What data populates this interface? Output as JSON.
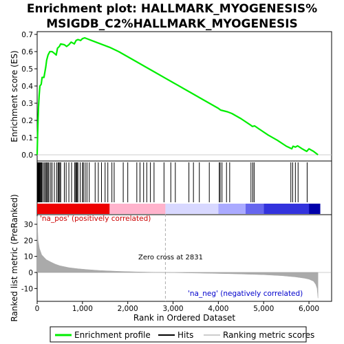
{
  "chart_data": {
    "type": "line",
    "title_line1": "Enrichment plot: HALLMARK_MYOGENESIS%",
    "title_line2": "MSIGDB_C2%HALLMARK_MYOGENESIS",
    "xlabel": "Rank in Ordered Dataset",
    "ylabel_top": "Enrichment score (ES)",
    "ylabel_bottom": "Ranked list metric (PreRanked)",
    "xlim": [
      0,
      6500
    ],
    "ylim_top": [
      0,
      0.7
    ],
    "ylim_bottom": [
      -18,
      36
    ],
    "xticks": [
      0,
      1000,
      2000,
      3000,
      4000,
      5000,
      6000
    ],
    "xtick_labels": [
      "0",
      "1,000",
      "2,000",
      "3,000",
      "4,000",
      "5,000",
      "6,000"
    ],
    "yticks_top": [
      0.0,
      0.1,
      0.2,
      0.3,
      0.4,
      0.5,
      0.6,
      0.7
    ],
    "ytick_labels_top": [
      "0.0",
      "0.1",
      "0.2",
      "0.3",
      "0.4",
      "0.5",
      "0.6",
      "0.7"
    ],
    "yticks_bottom": [
      -10,
      0,
      10,
      20,
      30
    ],
    "ytick_labels_bottom": [
      "-10",
      "0",
      "10",
      "20",
      "30"
    ],
    "zero_cross_rank": 2831,
    "annotations": {
      "pos": "'na_pos' (positively correlated)",
      "neg": "'na_neg' (negatively correlated)",
      "zero": "Zero cross at 2831"
    },
    "legend": {
      "enrichment": "Enrichment profile",
      "hits": "Hits",
      "metric": "Ranking metric scores"
    },
    "colors": {
      "profile": "#00ee00",
      "hits": "#000000",
      "metric": "#aaaaaa",
      "zero_line": "#aaaaaa"
    },
    "es_profile": [
      [
        0,
        0.0
      ],
      [
        10,
        0.12
      ],
      [
        20,
        0.2
      ],
      [
        30,
        0.28
      ],
      [
        45,
        0.35
      ],
      [
        60,
        0.4
      ],
      [
        90,
        0.41
      ],
      [
        110,
        0.45
      ],
      [
        150,
        0.45
      ],
      [
        170,
        0.48
      ],
      [
        190,
        0.51
      ],
      [
        210,
        0.55
      ],
      [
        240,
        0.58
      ],
      [
        280,
        0.6
      ],
      [
        330,
        0.6
      ],
      [
        380,
        0.59
      ],
      [
        420,
        0.58
      ],
      [
        450,
        0.62
      ],
      [
        490,
        0.63
      ],
      [
        520,
        0.645
      ],
      [
        600,
        0.64
      ],
      [
        650,
        0.63
      ],
      [
        700,
        0.64
      ],
      [
        750,
        0.655
      ],
      [
        820,
        0.645
      ],
      [
        860,
        0.665
      ],
      [
        900,
        0.67
      ],
      [
        960,
        0.665
      ],
      [
        1000,
        0.675
      ],
      [
        1050,
        0.68
      ],
      [
        1200,
        0.665
      ],
      [
        1400,
        0.645
      ],
      [
        1600,
        0.625
      ],
      [
        1800,
        0.6
      ],
      [
        2000,
        0.57
      ],
      [
        2200,
        0.54
      ],
      [
        2400,
        0.51
      ],
      [
        2600,
        0.48
      ],
      [
        2831,
        0.445
      ],
      [
        3000,
        0.42
      ],
      [
        3200,
        0.39
      ],
      [
        3400,
        0.36
      ],
      [
        3600,
        0.33
      ],
      [
        3800,
        0.3
      ],
      [
        4000,
        0.27
      ],
      [
        4050,
        0.26
      ],
      [
        4200,
        0.25
      ],
      [
        4300,
        0.24
      ],
      [
        4500,
        0.21
      ],
      [
        4700,
        0.175
      ],
      [
        4750,
        0.165
      ],
      [
        4800,
        0.168
      ],
      [
        4900,
        0.15
      ],
      [
        5100,
        0.115
      ],
      [
        5300,
        0.085
      ],
      [
        5500,
        0.05
      ],
      [
        5620,
        0.035
      ],
      [
        5650,
        0.05
      ],
      [
        5700,
        0.045
      ],
      [
        5750,
        0.052
      ],
      [
        5850,
        0.035
      ],
      [
        5950,
        0.02
      ],
      [
        6000,
        0.035
      ],
      [
        6100,
        0.02
      ],
      [
        6200,
        0.0
      ]
    ],
    "hits": [
      5,
      15,
      25,
      35,
      45,
      55,
      70,
      85,
      100,
      120,
      150,
      175,
      200,
      215,
      240,
      260,
      300,
      330,
      380,
      430,
      460,
      480,
      500,
      520,
      600,
      640,
      700,
      760,
      830,
      850,
      870,
      880,
      900,
      950,
      1000,
      1020,
      1060,
      1100,
      1150,
      1280,
      1350,
      1420,
      1500,
      1560,
      1650,
      1700,
      1900,
      2000,
      2200,
      2270,
      2350,
      2420,
      2500,
      2580,
      2800,
      2950,
      3050,
      3350,
      3450,
      3580,
      3800,
      4020,
      4040,
      4080,
      4180,
      4250,
      4720,
      4760,
      4790,
      5600,
      5640,
      5700,
      5760,
      5960
    ],
    "metric_profile": [
      [
        0,
        35
      ],
      [
        20,
        20
      ],
      [
        50,
        15
      ],
      [
        100,
        11
      ],
      [
        200,
        8
      ],
      [
        300,
        6.5
      ],
      [
        400,
        5.2
      ],
      [
        500,
        4.2
      ],
      [
        700,
        3.0
      ],
      [
        900,
        2.3
      ],
      [
        1100,
        1.8
      ],
      [
        1400,
        1.2
      ],
      [
        1800,
        0.7
      ],
      [
        2200,
        0.35
      ],
      [
        2600,
        0.1
      ],
      [
        2831,
        0.0
      ],
      [
        3200,
        -0.2
      ],
      [
        3800,
        -0.5
      ],
      [
        4400,
        -0.9
      ],
      [
        5000,
        -1.4
      ],
      [
        5400,
        -2.0
      ],
      [
        5700,
        -2.8
      ],
      [
        5900,
        -3.6
      ],
      [
        6000,
        -4.2
      ],
      [
        6100,
        -5.5
      ],
      [
        6150,
        -7.5
      ],
      [
        6180,
        -10
      ],
      [
        6200,
        -16
      ]
    ],
    "color_bar_segments": [
      {
        "from": 0,
        "to": 1600,
        "color": "#ee0000"
      },
      {
        "from": 1600,
        "to": 2831,
        "color": "#ffb3cc"
      },
      {
        "from": 2831,
        "to": 4000,
        "color": "#d8d8ff"
      },
      {
        "from": 4000,
        "to": 4600,
        "color": "#aaaaff"
      },
      {
        "from": 4600,
        "to": 5000,
        "color": "#6666ee"
      },
      {
        "from": 5000,
        "to": 6000,
        "color": "#3333dd"
      },
      {
        "from": 6000,
        "to": 6250,
        "color": "#0000aa"
      }
    ]
  }
}
